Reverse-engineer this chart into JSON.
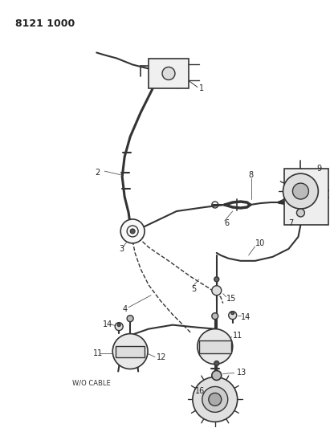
{
  "title": "8121 1000",
  "bg": "#ffffff",
  "lc": "#333333",
  "figsize": [
    4.11,
    5.33
  ],
  "dpi": 100
}
